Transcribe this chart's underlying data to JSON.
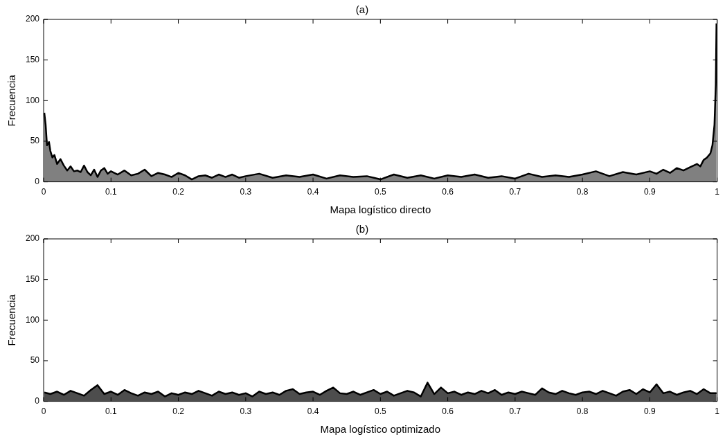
{
  "chart_data": [
    {
      "type": "area",
      "title": "(a)",
      "xlabel": "Mapa logístico directo",
      "ylabel": "Frecuencia",
      "xlim": [
        0,
        1
      ],
      "xticks": [
        0,
        0.1,
        0.2,
        0.3,
        0.4,
        0.5,
        0.6,
        0.7,
        0.8,
        0.9,
        1
      ],
      "ylim": [
        0,
        200
      ],
      "yticks": [
        0,
        50,
        100,
        150,
        200
      ],
      "grid": false,
      "legend": false,
      "marker": "none",
      "x": [
        0.001,
        0.003,
        0.005,
        0.008,
        0.01,
        0.013,
        0.016,
        0.02,
        0.025,
        0.03,
        0.035,
        0.04,
        0.045,
        0.05,
        0.055,
        0.06,
        0.065,
        0.07,
        0.075,
        0.08,
        0.085,
        0.09,
        0.095,
        0.1,
        0.11,
        0.12,
        0.13,
        0.14,
        0.15,
        0.16,
        0.17,
        0.18,
        0.19,
        0.2,
        0.21,
        0.22,
        0.23,
        0.24,
        0.25,
        0.26,
        0.27,
        0.28,
        0.29,
        0.3,
        0.32,
        0.34,
        0.36,
        0.38,
        0.4,
        0.42,
        0.44,
        0.46,
        0.48,
        0.5,
        0.52,
        0.54,
        0.56,
        0.58,
        0.6,
        0.62,
        0.64,
        0.66,
        0.68,
        0.7,
        0.72,
        0.74,
        0.76,
        0.78,
        0.8,
        0.82,
        0.84,
        0.86,
        0.88,
        0.9,
        0.91,
        0.92,
        0.93,
        0.94,
        0.95,
        0.96,
        0.97,
        0.975,
        0.98,
        0.985,
        0.99,
        0.993,
        0.996,
        0.998,
        0.999
      ],
      "series": [
        {
          "color": "#808080",
          "values": [
            85,
            70,
            45,
            49,
            38,
            30,
            33,
            22,
            28,
            20,
            14,
            19,
            13,
            14,
            12,
            20,
            12,
            8,
            15,
            6,
            14,
            17,
            10,
            13,
            9,
            14,
            8,
            10,
            15,
            7,
            11,
            9,
            6,
            11,
            8,
            3,
            7,
            8,
            5,
            9,
            6,
            9,
            5,
            7,
            10,
            5,
            8,
            6,
            9,
            4,
            8,
            6,
            7,
            3,
            9,
            5,
            8,
            4,
            8,
            6,
            9,
            5,
            7,
            4,
            10,
            6,
            8,
            6,
            9,
            13,
            7,
            12,
            9,
            13,
            10,
            15,
            11,
            17,
            14,
            18,
            22,
            19,
            27,
            30,
            35,
            45,
            70,
            120,
            195
          ]
        }
      ]
    },
    {
      "type": "area",
      "title": "(b)",
      "xlabel": "Mapa logístico optimizado",
      "ylabel": "Frecuencia",
      "xlim": [
        0,
        1
      ],
      "xticks": [
        0,
        0.1,
        0.2,
        0.3,
        0.4,
        0.5,
        0.6,
        0.7,
        0.8,
        0.9,
        1
      ],
      "ylim": [
        0,
        200
      ],
      "yticks": [
        0,
        50,
        100,
        150,
        200
      ],
      "grid": false,
      "legend": false,
      "marker": "none",
      "x": [
        0.001,
        0.01,
        0.02,
        0.03,
        0.04,
        0.05,
        0.06,
        0.07,
        0.08,
        0.09,
        0.1,
        0.11,
        0.12,
        0.13,
        0.14,
        0.15,
        0.16,
        0.17,
        0.18,
        0.19,
        0.2,
        0.21,
        0.22,
        0.23,
        0.24,
        0.25,
        0.26,
        0.27,
        0.28,
        0.29,
        0.3,
        0.31,
        0.32,
        0.33,
        0.34,
        0.35,
        0.36,
        0.37,
        0.38,
        0.39,
        0.4,
        0.41,
        0.42,
        0.43,
        0.44,
        0.45,
        0.46,
        0.47,
        0.48,
        0.49,
        0.5,
        0.51,
        0.52,
        0.53,
        0.54,
        0.55,
        0.56,
        0.57,
        0.58,
        0.59,
        0.6,
        0.61,
        0.62,
        0.63,
        0.64,
        0.65,
        0.66,
        0.67,
        0.68,
        0.69,
        0.7,
        0.71,
        0.72,
        0.73,
        0.74,
        0.75,
        0.76,
        0.77,
        0.78,
        0.79,
        0.8,
        0.81,
        0.82,
        0.83,
        0.84,
        0.85,
        0.86,
        0.87,
        0.88,
        0.89,
        0.9,
        0.91,
        0.92,
        0.93,
        0.94,
        0.95,
        0.96,
        0.97,
        0.98,
        0.99,
        0.999
      ],
      "series": [
        {
          "color": "#4d4d4d",
          "values": [
            11,
            9,
            12,
            8,
            13,
            10,
            7,
            14,
            20,
            9,
            12,
            8,
            14,
            10,
            7,
            11,
            9,
            12,
            6,
            10,
            8,
            11,
            9,
            13,
            10,
            7,
            12,
            9,
            11,
            8,
            10,
            6,
            12,
            9,
            11,
            8,
            13,
            15,
            9,
            11,
            12,
            8,
            13,
            17,
            10,
            9,
            12,
            8,
            11,
            14,
            9,
            12,
            7,
            10,
            13,
            11,
            6,
            23,
            9,
            17,
            10,
            12,
            8,
            11,
            9,
            13,
            10,
            14,
            8,
            11,
            9,
            12,
            10,
            8,
            16,
            11,
            9,
            13,
            10,
            8,
            11,
            12,
            9,
            13,
            10,
            7,
            12,
            14,
            9,
            15,
            11,
            21,
            10,
            12,
            8,
            11,
            13,
            9,
            15,
            10,
            10
          ]
        }
      ]
    }
  ]
}
